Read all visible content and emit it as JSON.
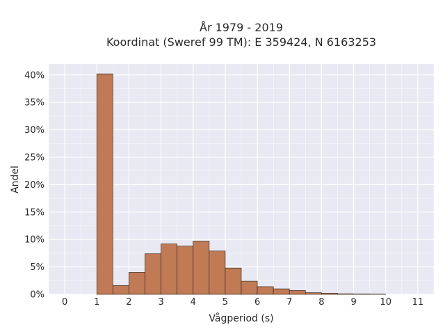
{
  "chart_data": {
    "type": "bar",
    "title": "År 1979 - 2019",
    "subtitle": "Koordinat (Sweref 99 TM): E 359424, N 6163253",
    "xlabel": "Vågperiod (s)",
    "ylabel": "Andel",
    "xlim": [
      -0.5,
      11.5
    ],
    "ylim": [
      0,
      0.42
    ],
    "x_ticks": [
      "0",
      "1",
      "2",
      "3",
      "4",
      "5",
      "6",
      "7",
      "8",
      "9",
      "10",
      "11"
    ],
    "y_ticks": [
      "0%",
      "5%",
      "10%",
      "15%",
      "20%",
      "25%",
      "30%",
      "35%",
      "40%"
    ],
    "bin_width": 0.5,
    "bins": [
      {
        "x0": 1.0,
        "value": 0.402
      },
      {
        "x0": 1.5,
        "value": 0.016
      },
      {
        "x0": 2.0,
        "value": 0.04
      },
      {
        "x0": 2.5,
        "value": 0.074
      },
      {
        "x0": 3.0,
        "value": 0.092
      },
      {
        "x0": 3.5,
        "value": 0.088
      },
      {
        "x0": 4.0,
        "value": 0.097
      },
      {
        "x0": 4.5,
        "value": 0.079
      },
      {
        "x0": 5.0,
        "value": 0.048
      },
      {
        "x0": 5.5,
        "value": 0.024
      },
      {
        "x0": 6.0,
        "value": 0.014
      },
      {
        "x0": 6.5,
        "value": 0.01
      },
      {
        "x0": 7.0,
        "value": 0.007
      },
      {
        "x0": 7.5,
        "value": 0.003
      },
      {
        "x0": 8.0,
        "value": 0.002
      },
      {
        "x0": 8.5,
        "value": 0.001
      },
      {
        "x0": 9.0,
        "value": 0.0007
      },
      {
        "x0": 9.5,
        "value": 0.0005
      }
    ],
    "grid": true,
    "colors": {
      "bar": "#c07a55",
      "bar_edge": "#3a2a20",
      "plot_bg": "#e8e9f2",
      "grid": "#ffffff"
    }
  }
}
